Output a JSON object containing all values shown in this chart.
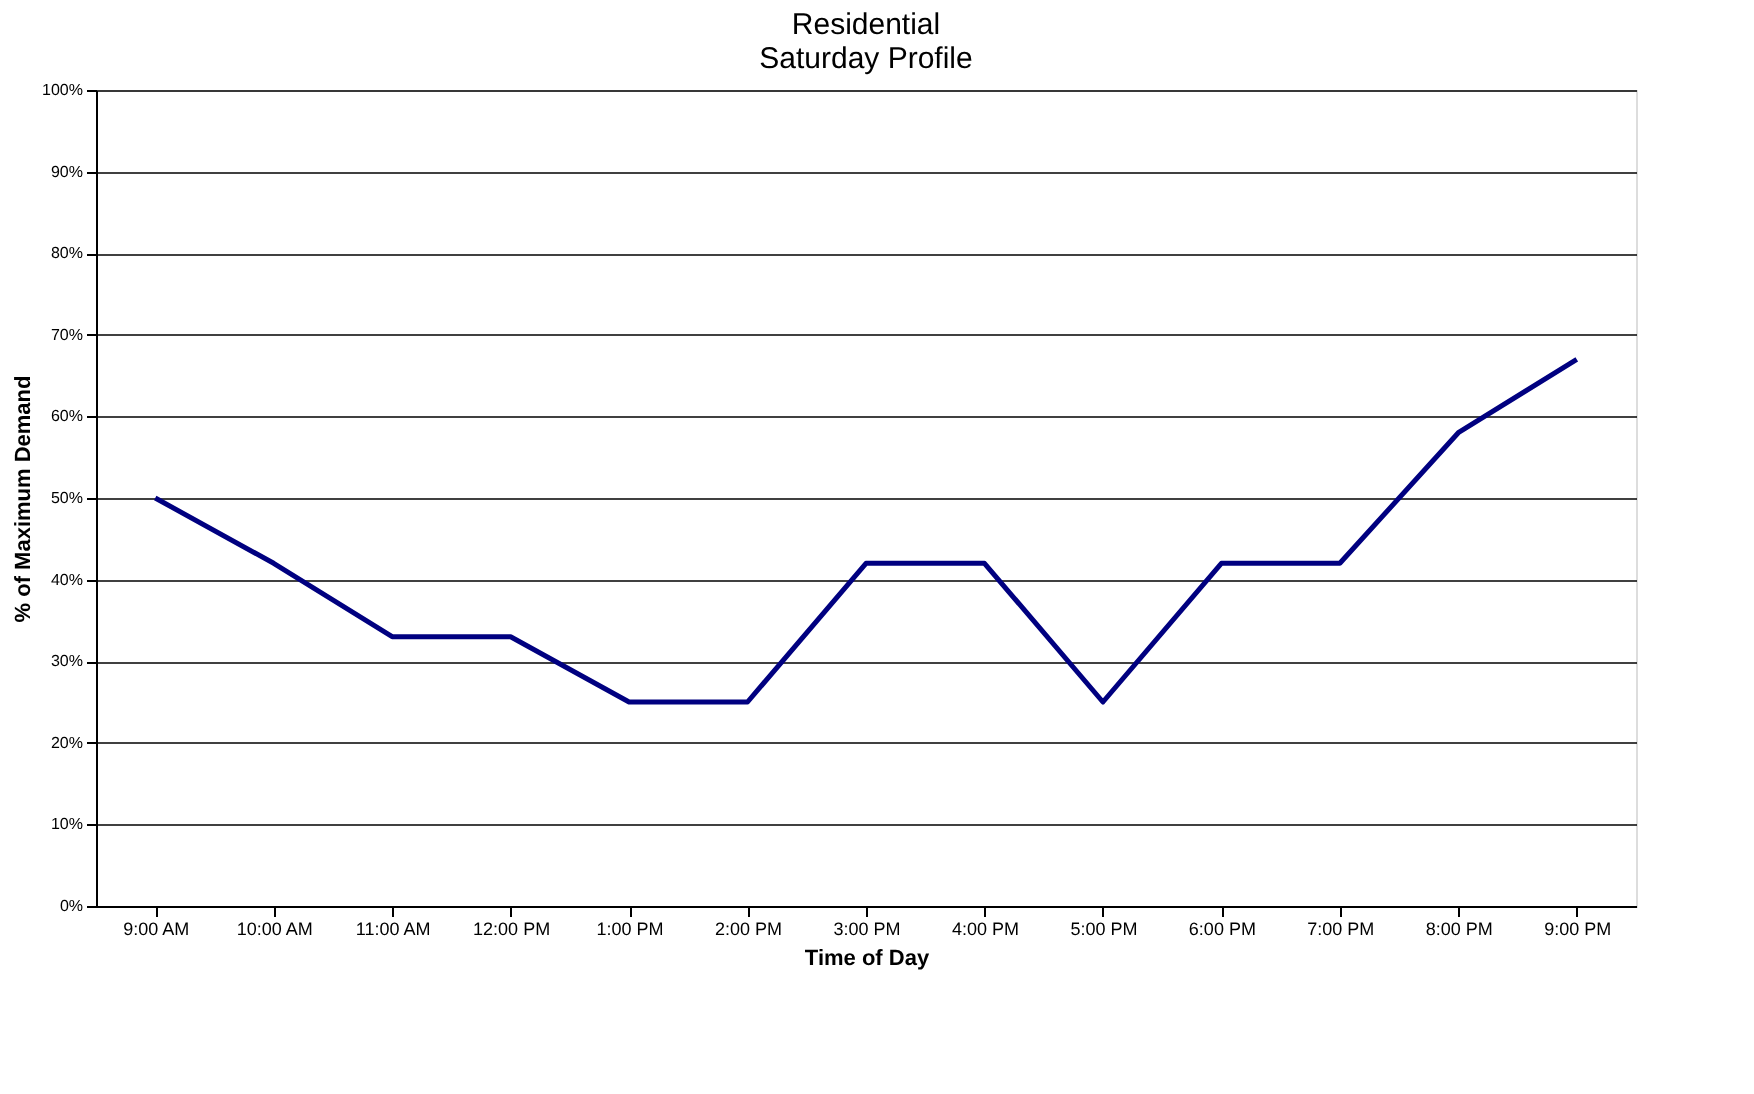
{
  "chart_data": {
    "type": "line",
    "title": "Residential\nSaturday Profile",
    "xlabel": "Time of Day",
    "ylabel": "% of Maximum Demand",
    "categories": [
      "9:00 AM",
      "10:00 AM",
      "11:00 AM",
      "12:00 PM",
      "1:00 PM",
      "2:00 PM",
      "3:00 PM",
      "4:00 PM",
      "5:00 PM",
      "6:00 PM",
      "7:00 PM",
      "8:00 PM",
      "9:00 PM"
    ],
    "series": [
      {
        "color": "#000080",
        "values": [
          50,
          42,
          33,
          33,
          25,
          25,
          42,
          42,
          25,
          42,
          42,
          58,
          67
        ]
      }
    ],
    "ylim": [
      0,
      100
    ],
    "yticks": [
      {
        "value": 0,
        "label": "0%"
      },
      {
        "value": 10,
        "label": "10%"
      },
      {
        "value": 20,
        "label": "20%"
      },
      {
        "value": 30,
        "label": "30%"
      },
      {
        "value": 40,
        "label": "40%"
      },
      {
        "value": 50,
        "label": "50%"
      },
      {
        "value": 60,
        "label": "60%"
      },
      {
        "value": 70,
        "label": "70%"
      },
      {
        "value": 80,
        "label": "80%"
      },
      {
        "value": 90,
        "label": "90%"
      },
      {
        "value": 100,
        "label": "100%"
      }
    ],
    "grid": "y",
    "marker": "none",
    "line_style": "solid"
  }
}
